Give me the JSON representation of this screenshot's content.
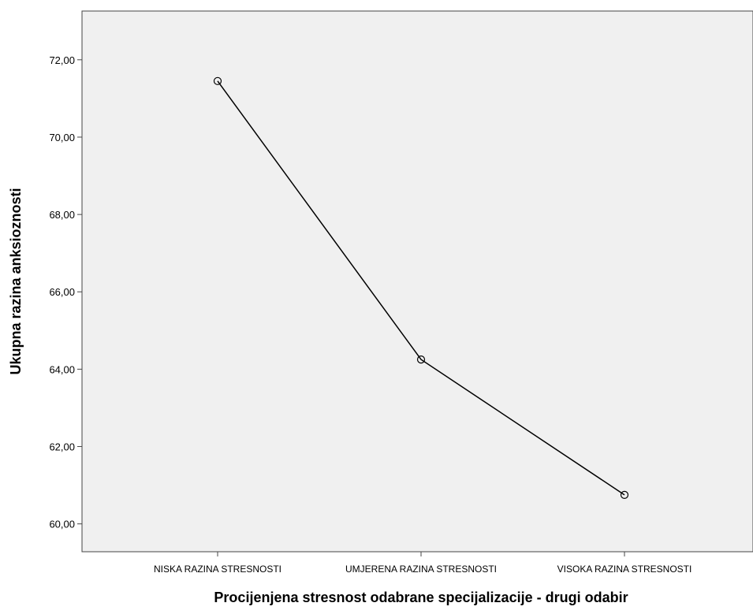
{
  "chart_data": {
    "type": "line",
    "title": "",
    "xlabel": "Procijenjena stresnost odabrane specijalizacije - drugi odabir",
    "ylabel": "Ukupna razina anksioznosti",
    "categories": [
      "NISKA RAZINA STRESNOSTI",
      "UMJERENA RAZINA STRESNOSTI",
      "VISOKA RAZINA STRESNOSTI"
    ],
    "values": [
      71.45,
      64.25,
      60.75
    ],
    "ylim": [
      59.28,
      73.26
    ],
    "yticks": [
      "60,00",
      "62,00",
      "64,00",
      "66,00",
      "68,00",
      "70,00",
      "72,00"
    ],
    "ytick_values": [
      60,
      62,
      64,
      66,
      68,
      70,
      72
    ],
    "grid": false,
    "legend": "none",
    "marker": "circle-open",
    "colors": {
      "plot_background": "#f0f0f0",
      "line": "#000000",
      "frame": "#444444"
    }
  }
}
